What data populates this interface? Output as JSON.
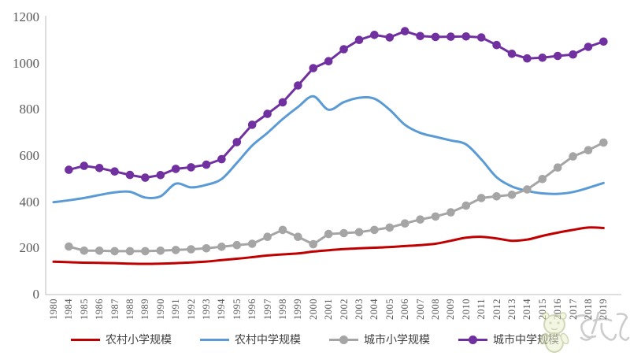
{
  "chart_data": {
    "type": "line",
    "title": "",
    "categories": [
      "1980",
      "1984",
      "1985",
      "1986",
      "1987",
      "1988",
      "1989",
      "1990",
      "1991",
      "1992",
      "1993",
      "1994",
      "1995",
      "1996",
      "1997",
      "1998",
      "1999",
      "2000",
      "2001",
      "2002",
      "2003",
      "2004",
      "2005",
      "2006",
      "2007",
      "2008",
      "2009",
      "2010",
      "2011",
      "2012",
      "2013",
      "2014",
      "2015",
      "2016",
      "2017",
      "2018",
      "2019"
    ],
    "series": [
      {
        "name": "农村小学规模",
        "color": "#c00000",
        "marker": "none",
        "smooth": true,
        "values": [
          142,
          140,
          138,
          137,
          136,
          134,
          133,
          134,
          136,
          139,
          143,
          149,
          155,
          162,
          169,
          174,
          178,
          186,
          192,
          197,
          200,
          203,
          206,
          210,
          214,
          220,
          233,
          246,
          250,
          243,
          233,
          238,
          254,
          268,
          280,
          290,
          288
        ]
      },
      {
        "name": "农村中学规模",
        "color": "#5b9bd5",
        "marker": "none",
        "smooth": true,
        "values": [
          400,
          408,
          418,
          431,
          442,
          445,
          420,
          425,
          480,
          464,
          475,
          500,
          570,
          645,
          700,
          760,
          812,
          858,
          800,
          833,
          852,
          848,
          800,
          735,
          700,
          683,
          667,
          650,
          585,
          508,
          468,
          449,
          438,
          436,
          444,
          462,
          483
        ]
      },
      {
        "name": "城市小学规模",
        "color": "#a5a5a5",
        "marker": "circle",
        "smooth": false,
        "values": [
          null,
          208,
          190,
          190,
          188,
          188,
          188,
          190,
          193,
          196,
          200,
          207,
          214,
          220,
          250,
          280,
          250,
          218,
          262,
          266,
          270,
          280,
          290,
          308,
          325,
          338,
          356,
          385,
          418,
          425,
          432,
          455,
          500,
          550,
          598,
          625,
          658
        ]
      },
      {
        "name": "城市中学规模",
        "color": "#7030a0",
        "marker": "circle",
        "smooth": false,
        "values": [
          null,
          540,
          557,
          548,
          533,
          518,
          506,
          517,
          544,
          551,
          562,
          586,
          660,
          735,
          782,
          832,
          905,
          980,
          1010,
          1062,
          1102,
          1124,
          1113,
          1140,
          1119,
          1115,
          1116,
          1117,
          1113,
          1080,
          1042,
          1022,
          1025,
          1033,
          1039,
          1072,
          1095
        ]
      }
    ],
    "xlabel": "",
    "ylabel": "",
    "ylim": [
      0,
      1200
    ],
    "yticks": [
      0,
      200,
      400,
      600,
      800,
      1000,
      1200
    ],
    "grid": false,
    "legend_position": "bottom"
  },
  "axis": {
    "line_color": "#c9c9c9",
    "tick_label_color": "#595959"
  },
  "watermark": {
    "mascot_fill": "#e9efcd",
    "mascot_stroke": "#a9b87c",
    "script_color": "#909090"
  }
}
